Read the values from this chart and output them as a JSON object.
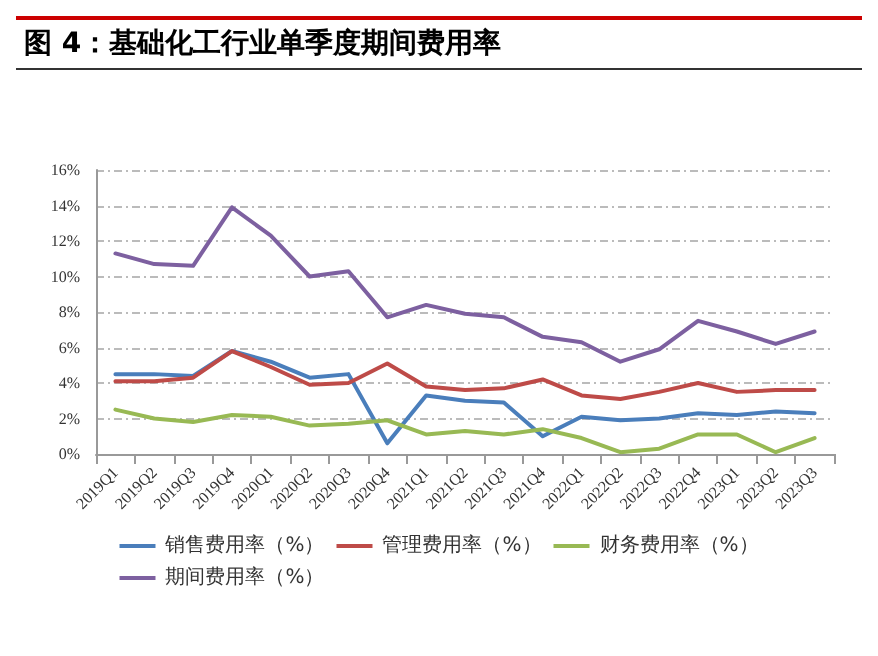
{
  "chart_data": {
    "type": "line",
    "title": "图 4：基础化工行业单季度期间费用率",
    "categories": [
      "2019Q1",
      "2019Q2",
      "2019Q3",
      "2019Q4",
      "2020Q1",
      "2020Q2",
      "2020Q3",
      "2020Q4",
      "2021Q1",
      "2021Q2",
      "2021Q3",
      "2021Q4",
      "2022Q1",
      "2022Q2",
      "2022Q3",
      "2022Q4",
      "2023Q1",
      "2023Q2",
      "2023Q3"
    ],
    "series": [
      {
        "name": "销售费用率（%）",
        "color": "#4a7ebb",
        "values": [
          4.5,
          4.5,
          4.4,
          5.8,
          5.2,
          4.3,
          4.5,
          0.6,
          3.3,
          3.0,
          2.9,
          1.0,
          2.1,
          1.9,
          2.0,
          2.3,
          2.2,
          2.4,
          2.3
        ]
      },
      {
        "name": "管理费用率（%）",
        "color": "#be4b48",
        "values": [
          4.1,
          4.1,
          4.3,
          5.8,
          4.9,
          3.9,
          4.0,
          5.1,
          3.8,
          3.6,
          3.7,
          4.2,
          3.3,
          3.1,
          3.5,
          4.0,
          3.5,
          3.6,
          3.6
        ]
      },
      {
        "name": "财务费用率（%）",
        "color": "#98b954",
        "values": [
          2.5,
          2.0,
          1.8,
          2.2,
          2.1,
          1.6,
          1.7,
          1.9,
          1.1,
          1.3,
          1.1,
          1.4,
          0.9,
          0.1,
          0.3,
          1.1,
          1.1,
          0.1,
          0.9
        ]
      },
      {
        "name": "期间费用率（%）",
        "color": "#7d60a0",
        "values": [
          11.3,
          10.7,
          10.6,
          13.9,
          12.3,
          10.0,
          10.3,
          7.7,
          8.4,
          7.9,
          7.7,
          6.6,
          6.3,
          5.2,
          5.9,
          7.5,
          6.9,
          6.2,
          6.9
        ]
      }
    ],
    "ylim": [
      0,
      16
    ],
    "yticks": [
      {
        "value": 0,
        "label": "0%"
      },
      {
        "value": 2,
        "label": "2%"
      },
      {
        "value": 4,
        "label": "4%"
      },
      {
        "value": 6,
        "label": "6%"
      },
      {
        "value": 8,
        "label": "8%"
      },
      {
        "value": 10,
        "label": "10%"
      },
      {
        "value": 12,
        "label": "12%"
      },
      {
        "value": 14,
        "label": "14%"
      },
      {
        "value": 16,
        "label": "16%"
      }
    ],
    "grid": "y",
    "legend": "bottom",
    "marker": "none",
    "line_style": "solid"
  }
}
